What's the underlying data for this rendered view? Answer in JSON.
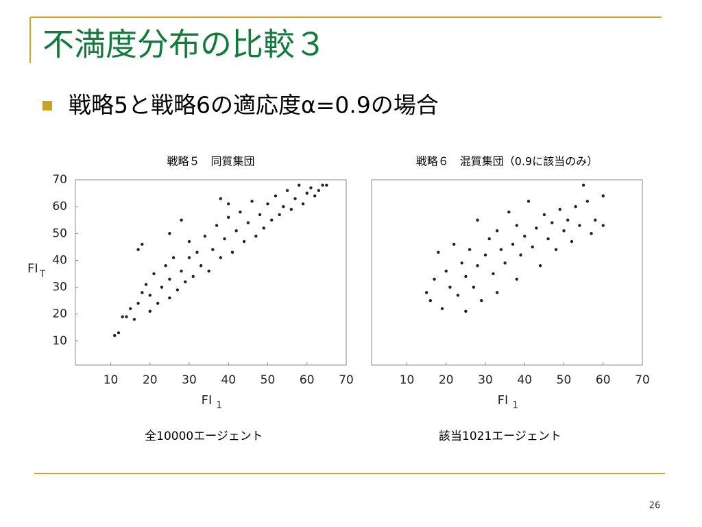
{
  "slide": {
    "title": "不満度分布の比較３",
    "bullet": "戦略5と戦略6の適応度α=0.9の場合",
    "page_number": "26"
  },
  "chart_data": [
    {
      "type": "scatter",
      "title": "戦略５　同質集団",
      "caption": "全10000エージェント",
      "xlabel": "FI",
      "xlabel_sub": "1",
      "ylabel": "FI",
      "ylabel_sub": "T",
      "color": "#222222",
      "xlim": [
        1,
        70
      ],
      "ylim": [
        1,
        70
      ],
      "xticks": [
        10,
        20,
        30,
        40,
        50,
        60,
        70
      ],
      "yticks": [
        10,
        20,
        30,
        40,
        50,
        60,
        70
      ],
      "x": [
        11,
        12,
        13,
        14,
        15,
        16,
        17,
        17,
        18,
        18,
        19,
        20,
        20,
        21,
        22,
        23,
        24,
        25,
        25,
        26,
        27,
        28,
        29,
        30,
        30,
        31,
        32,
        33,
        34,
        35,
        36,
        37,
        38,
        39,
        40,
        41,
        42,
        43,
        44,
        45,
        46,
        47,
        48,
        49,
        50,
        51,
        52,
        53,
        54,
        55,
        56,
        57,
        58,
        59,
        60,
        61,
        62,
        63,
        64,
        65,
        38,
        40,
        28,
        25
      ],
      "values": [
        12,
        13,
        19,
        19,
        22,
        18,
        24,
        44,
        46,
        28,
        31,
        21,
        27,
        35,
        24,
        30,
        38,
        26,
        33,
        41,
        29,
        36,
        32,
        41,
        47,
        34,
        43,
        38,
        49,
        36,
        44,
        53,
        41,
        48,
        56,
        43,
        51,
        58,
        47,
        54,
        62,
        49,
        57,
        52,
        61,
        55,
        64,
        57,
        60,
        66,
        59,
        63,
        68,
        61,
        65,
        67,
        64,
        66,
        68,
        68,
        63,
        61,
        55,
        50
      ]
    },
    {
      "type": "scatter",
      "title": "戦略６　混質集団（0.9に該当のみ）",
      "caption": "該当1021エージェント",
      "xlabel": "FI",
      "xlabel_sub": "1",
      "color": "#222222",
      "xlim": [
        1,
        70
      ],
      "ylim": [
        1,
        70
      ],
      "xticks": [
        10,
        20,
        30,
        40,
        50,
        60,
        70
      ],
      "x": [
        15,
        16,
        17,
        18,
        19,
        20,
        21,
        22,
        23,
        24,
        25,
        25,
        26,
        27,
        28,
        28,
        29,
        30,
        31,
        32,
        33,
        33,
        34,
        35,
        36,
        37,
        38,
        38,
        39,
        40,
        41,
        42,
        43,
        44,
        45,
        46,
        47,
        48,
        49,
        50,
        51,
        52,
        53,
        54,
        55,
        56,
        57,
        58,
        60,
        60
      ],
      "values": [
        28,
        25,
        33,
        43,
        22,
        36,
        30,
        46,
        27,
        39,
        21,
        34,
        44,
        30,
        55,
        38,
        25,
        42,
        48,
        35,
        51,
        28,
        44,
        39,
        58,
        46,
        33,
        53,
        42,
        49,
        62,
        45,
        52,
        38,
        57,
        48,
        54,
        44,
        59,
        51,
        55,
        47,
        60,
        53,
        68,
        62,
        50,
        55,
        64,
        53
      ]
    }
  ]
}
